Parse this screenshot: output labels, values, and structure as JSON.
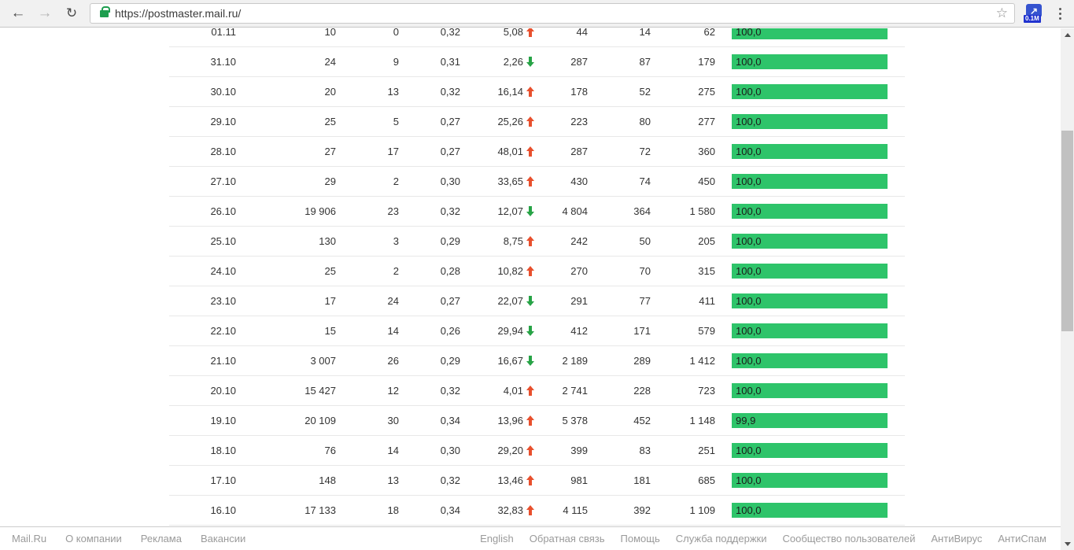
{
  "browser": {
    "url": "https://postmaster.mail.ru/",
    "back_icon": "←",
    "forward_icon": "→",
    "refresh_icon": "↻",
    "star_icon": "☆",
    "extension_icon": "↗",
    "extension_badge": "0.1M"
  },
  "chart_data": {
    "type": "table",
    "columns": [
      "date",
      "col1",
      "col2",
      "col3",
      "delta",
      "col4",
      "col5",
      "col6",
      "delivered_pct"
    ],
    "rows": [
      {
        "date": "01.11",
        "c1": "10",
        "c2": "0",
        "c3": "0,32",
        "delta": "5,08",
        "dir": "up",
        "c4": "44",
        "c5": "14",
        "c6": "62",
        "bar": "100,0",
        "bar_pct": 100
      },
      {
        "date": "31.10",
        "c1": "24",
        "c2": "9",
        "c3": "0,31",
        "delta": "2,26",
        "dir": "down",
        "c4": "287",
        "c5": "87",
        "c6": "179",
        "bar": "100,0",
        "bar_pct": 100
      },
      {
        "date": "30.10",
        "c1": "20",
        "c2": "13",
        "c3": "0,32",
        "delta": "16,14",
        "dir": "up",
        "c4": "178",
        "c5": "52",
        "c6": "275",
        "bar": "100,0",
        "bar_pct": 100
      },
      {
        "date": "29.10",
        "c1": "25",
        "c2": "5",
        "c3": "0,27",
        "delta": "25,26",
        "dir": "up",
        "c4": "223",
        "c5": "80",
        "c6": "277",
        "bar": "100,0",
        "bar_pct": 100
      },
      {
        "date": "28.10",
        "c1": "27",
        "c2": "17",
        "c3": "0,27",
        "delta": "48,01",
        "dir": "up",
        "c4": "287",
        "c5": "72",
        "c6": "360",
        "bar": "100,0",
        "bar_pct": 100
      },
      {
        "date": "27.10",
        "c1": "29",
        "c2": "2",
        "c3": "0,30",
        "delta": "33,65",
        "dir": "up",
        "c4": "430",
        "c5": "74",
        "c6": "450",
        "bar": "100,0",
        "bar_pct": 100
      },
      {
        "date": "26.10",
        "c1": "19 906",
        "c2": "23",
        "c3": "0,32",
        "delta": "12,07",
        "dir": "down",
        "c4": "4 804",
        "c5": "364",
        "c6": "1 580",
        "bar": "100,0",
        "bar_pct": 100
      },
      {
        "date": "25.10",
        "c1": "130",
        "c2": "3",
        "c3": "0,29",
        "delta": "8,75",
        "dir": "up",
        "c4": "242",
        "c5": "50",
        "c6": "205",
        "bar": "100,0",
        "bar_pct": 100
      },
      {
        "date": "24.10",
        "c1": "25",
        "c2": "2",
        "c3": "0,28",
        "delta": "10,82",
        "dir": "up",
        "c4": "270",
        "c5": "70",
        "c6": "315",
        "bar": "100,0",
        "bar_pct": 100
      },
      {
        "date": "23.10",
        "c1": "17",
        "c2": "24",
        "c3": "0,27",
        "delta": "22,07",
        "dir": "down",
        "c4": "291",
        "c5": "77",
        "c6": "411",
        "bar": "100,0",
        "bar_pct": 100
      },
      {
        "date": "22.10",
        "c1": "15",
        "c2": "14",
        "c3": "0,26",
        "delta": "29,94",
        "dir": "down",
        "c4": "412",
        "c5": "171",
        "c6": "579",
        "bar": "100,0",
        "bar_pct": 100
      },
      {
        "date": "21.10",
        "c1": "3 007",
        "c2": "26",
        "c3": "0,29",
        "delta": "16,67",
        "dir": "down",
        "c4": "2 189",
        "c5": "289",
        "c6": "1 412",
        "bar": "100,0",
        "bar_pct": 100
      },
      {
        "date": "20.10",
        "c1": "15 427",
        "c2": "12",
        "c3": "0,32",
        "delta": "4,01",
        "dir": "up",
        "c4": "2 741",
        "c5": "228",
        "c6": "723",
        "bar": "100,0",
        "bar_pct": 100
      },
      {
        "date": "19.10",
        "c1": "20 109",
        "c2": "30",
        "c3": "0,34",
        "delta": "13,96",
        "dir": "up",
        "c4": "5 378",
        "c5": "452",
        "c6": "1 148",
        "bar": "99,9",
        "bar_pct": 99.9
      },
      {
        "date": "18.10",
        "c1": "76",
        "c2": "14",
        "c3": "0,30",
        "delta": "29,20",
        "dir": "up",
        "c4": "399",
        "c5": "83",
        "c6": "251",
        "bar": "100,0",
        "bar_pct": 100
      },
      {
        "date": "17.10",
        "c1": "148",
        "c2": "13",
        "c3": "0,32",
        "delta": "13,46",
        "dir": "up",
        "c4": "981",
        "c5": "181",
        "c6": "685",
        "bar": "100,0",
        "bar_pct": 100
      },
      {
        "date": "16.10",
        "c1": "17 133",
        "c2": "18",
        "c3": "0,34",
        "delta": "32,83",
        "dir": "up",
        "c4": "4 115",
        "c5": "392",
        "c6": "1 109",
        "bar": "100,0",
        "bar_pct": 100
      }
    ]
  },
  "footer": {
    "left": [
      "Mail.Ru",
      "О компании",
      "Реклама",
      "Вакансии"
    ],
    "right": [
      "English",
      "Обратная связь",
      "Помощь",
      "Служба поддержки",
      "Сообщество пользователей",
      "АнтиВирус",
      "АнтиСпам"
    ]
  },
  "colors": {
    "bar_green": "#2ec46a",
    "arrow_up_red": "#e8502d",
    "arrow_down_green": "#27a346",
    "lock_green": "#1e9e4f",
    "badge_blue": "#2133cf"
  }
}
